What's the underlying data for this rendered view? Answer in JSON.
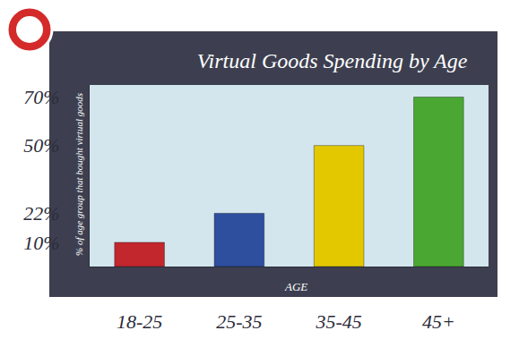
{
  "chart_data": {
    "type": "bar",
    "title": "Virtual Goods Spending by Age",
    "x_label": "AGE",
    "y_label": "% of age group that bought virtual goods",
    "categories": [
      "18-25",
      "25-35",
      "35-45",
      "45+"
    ],
    "values": [
      10,
      22,
      50,
      70
    ],
    "colors": [
      "#c1272d",
      "#2e4e9e",
      "#e3c800",
      "#4aa832"
    ],
    "ylim": [
      0,
      75
    ],
    "yticks": [
      {
        "value": 10,
        "label": "10%"
      },
      {
        "value": 22,
        "label": "22%"
      },
      {
        "value": 50,
        "label": "50%"
      },
      {
        "value": 70,
        "label": "70%"
      }
    ],
    "grid": false,
    "data_labels": false
  }
}
